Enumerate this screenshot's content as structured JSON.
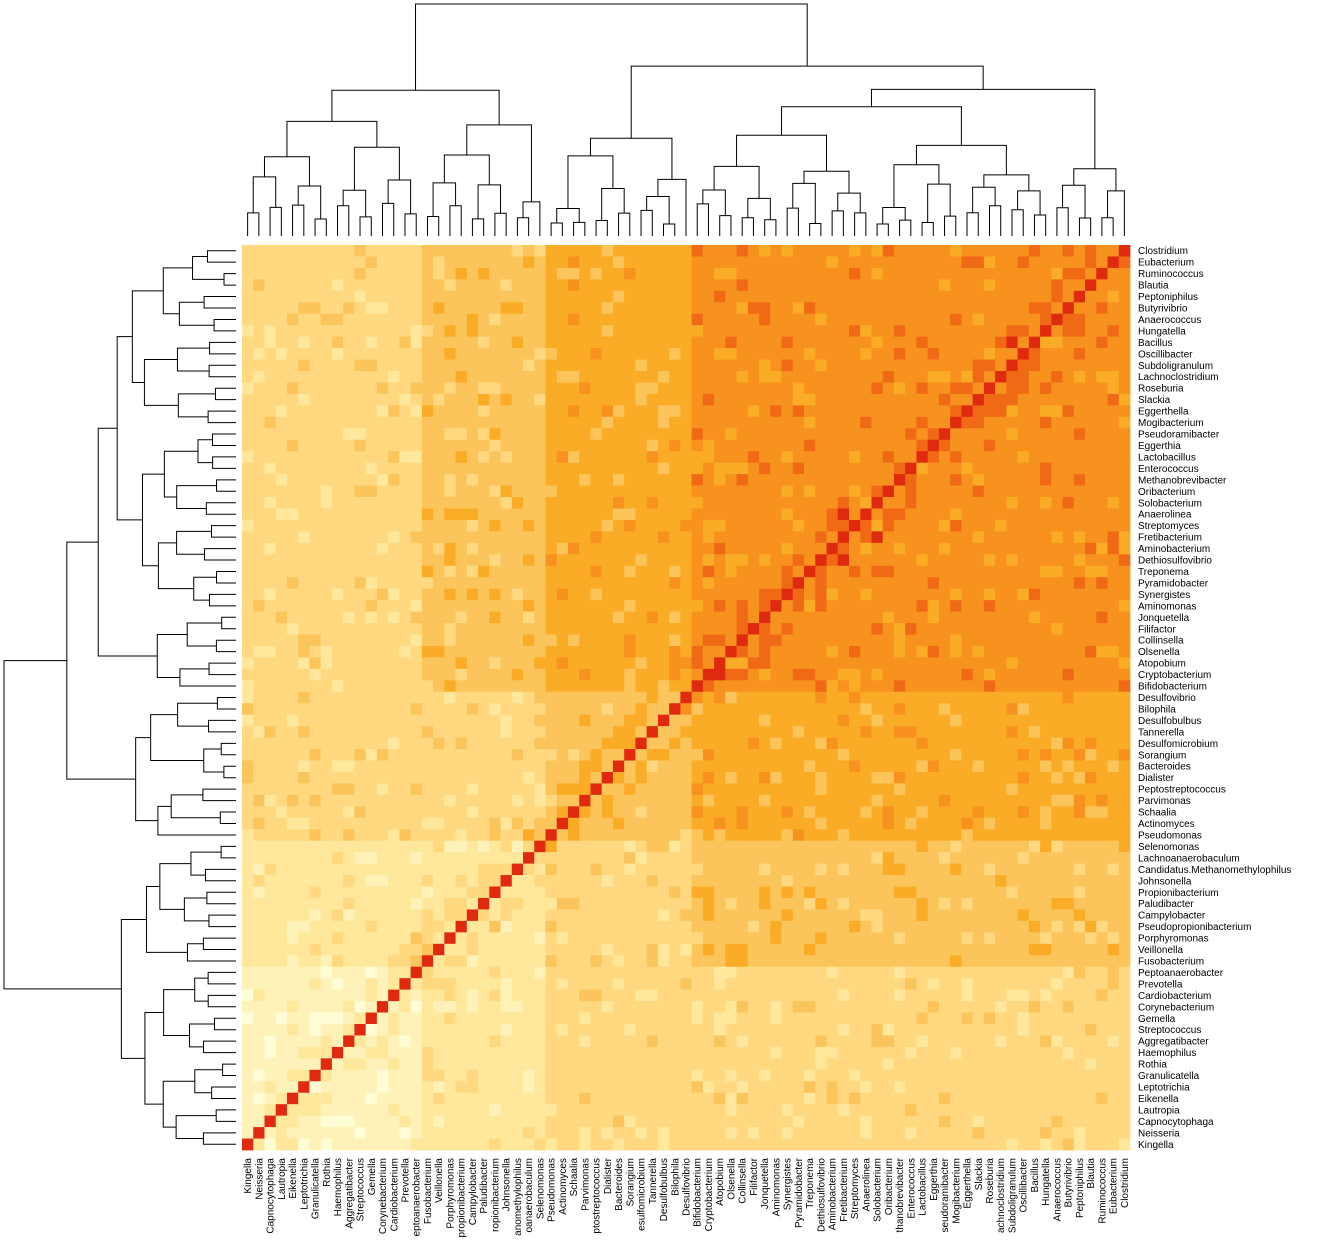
{
  "chart_data": {
    "type": "heatmap",
    "clustered": true,
    "row_labels": [
      "Clostridium",
      "Eubacterium",
      "Ruminococcus",
      "Blautia",
      "Peptoniphilus",
      "Butyrivibrio",
      "Anaerococcus",
      "Hungatella",
      "Bacillus",
      "Oscillibacter",
      "Subdoligranulum",
      "Lachnoclostridium",
      "Roseburia",
      "Slackia",
      "Eggerthella",
      "Mogibacterium",
      "Pseudoramibacter",
      "Eggerthia",
      "Lactobacillus",
      "Enterococcus",
      "Methanobrevibacter",
      "Oribacterium",
      "Solobacterium",
      "Anaerolinea",
      "Streptomyces",
      "Fretibacterium",
      "Aminobacterium",
      "Dethiosulfovibrio",
      "Treponema",
      "Pyramidobacter",
      "Synergistes",
      "Aminomonas",
      "Jonquetella",
      "Filifactor",
      "Collinsella",
      "Olsenella",
      "Atopobium",
      "Cryptobacterium",
      "Bifidobacterium",
      "Desulfovibrio",
      "Bilophila",
      "Desulfobulbus",
      "Tannerella",
      "Desulfomicrobium",
      "Sorangium",
      "Bacteroides",
      "Dialister",
      "Peptostreptococcus",
      "Parvimonas",
      "Schaalia",
      "Actinomyces",
      "Pseudomonas",
      "Selenomonas",
      "Lachnoanaerobaculum",
      "Candidatus.Methanomethylophilus",
      "Johnsonella",
      "Propionibacterium",
      "Paludibacter",
      "Campylobacter",
      "Pseudopropionibacterium",
      "Porphyromonas",
      "Veillonella",
      "Fusobacterium",
      "Peptoanaerobacter",
      "Prevotella",
      "Cardiobacterium",
      "Corynebacterium",
      "Gemella",
      "Streptococcus",
      "Aggregatibacter",
      "Haemophilus",
      "Rothia",
      "Granulicatella",
      "Leptotrichia",
      "Eikenella",
      "Lautropia",
      "Capnocytophaga",
      "Neisseria",
      "Kingella"
    ],
    "col_labels": [
      "Kingella",
      "Neisseria",
      "Capnocytophaga",
      "Lautropia",
      "Eikenella",
      "Leptotrichia",
      "Granulicatella",
      "Rothia",
      "Haemophilus",
      "Aggregatibacter",
      "Streptococcus",
      "Gemella",
      "Corynebacterium",
      "Cardiobacterium",
      "Prevotella",
      "Peptoanaerobacter",
      "Fusobacterium",
      "Veillonella",
      "Porphyromonas",
      "Pseudopropionibacterium",
      "Campylobacter",
      "Paludibacter",
      "Propionibacterium",
      "Johnsonella",
      "Candidatus.Methanomethylophilus",
      "Lachnoanaerobaculum",
      "Selenomonas",
      "Pseudomonas",
      "Actinomyces",
      "Schaalia",
      "Parvimonas",
      "Peptostreptococcus",
      "Dialister",
      "Bacteroides",
      "Sorangium",
      "Desulfomicrobium",
      "Tannerella",
      "Desulfobulbus",
      "Bilophila",
      "Desulfovibrio",
      "Bifidobacterium",
      "Cryptobacterium",
      "Atopobium",
      "Olsenella",
      "Collinsella",
      "Filifactor",
      "Jonquetella",
      "Aminomonas",
      "Synergistes",
      "Pyramidobacter",
      "Treponema",
      "Dethiosulfovibrio",
      "Aminobacterium",
      "Fretibacterium",
      "Streptomyces",
      "Anaerolinea",
      "Solobacterium",
      "Oribacterium",
      "Methanobrevibacter",
      "Enterococcus",
      "Lactobacillus",
      "Eggerthia",
      "Pseudoramibacter",
      "Mogibacterium",
      "Eggerthella",
      "Slackia",
      "Roseburia",
      "Lachnoclostridium",
      "Subdoligranulum",
      "Oscillibacter",
      "Bacillus",
      "Hungatella",
      "Anaerococcus",
      "Butyrivibrio",
      "Peptoniphilus",
      "Blautia",
      "Ruminococcus",
      "Eubacterium",
      "Clostridium"
    ],
    "col_label_display": [
      "Kingella",
      "Neisseria",
      "Capnocytophaga",
      "Lautropia",
      "Eikenella",
      "Leptotrichia",
      "Granulicatella",
      "Rothia",
      "Haemophilus",
      "Aggregatibacter",
      "Streptococcus",
      "Gemella",
      "Corynebacterium",
      "Cardiobacterium",
      "Prevotella",
      "eptoanaerobacter",
      "Fusobacterium",
      "Veillonella",
      "Porphyromonas",
      "propionibacterium",
      "Campylobacter",
      "Paludibacter",
      "ropionibacterium",
      "Johnsonella",
      "anomethylophilus",
      "oanaerobaculum",
      "Selenomonas",
      "Pseudomonas",
      "Actinomyces",
      "Schaalia",
      "Parvimonas",
      "ptostreptococcus",
      "Dialister",
      "Bacteroides",
      "Sorangium",
      "esulfomicrobium",
      "Tannerella",
      "Desulfobulbus",
      "Bilophila",
      "Desulfovibrio",
      "Bifidobacterium",
      "Cryptobacterium",
      "Atopobium",
      "Olsenella",
      "Collinsella",
      "Filifactor",
      "Jonquetella",
      "Aminomonas",
      "Synergistes",
      "Pyramidobacter",
      "Treponema",
      "Dethiosulfovibrio",
      "Aminobacterium",
      "Fretibacterium",
      "Streptomyces",
      "Anaerolinea",
      "Solobacterium",
      "Oribacterium",
      "thanobrevibacter",
      "Enterococcus",
      "Lactobacillus",
      "Eggerthia",
      "seudoramibacter",
      "Mogibacterium",
      "Eggerthella",
      "Slackia",
      "Roseburia",
      "achnoclostridium",
      "Subdoligranulum",
      "Oscillibacter",
      "Bacillus",
      "Hungatella",
      "Anaerococcus",
      "Butyrivibrio",
      "Peptoniphilus",
      "Blautia",
      "Ruminococcus",
      "Eubacterium",
      "Clostridium"
    ],
    "col_groups": [
      {
        "level": 1,
        "members": [
          "Kingella",
          "Neisseria",
          "Capnocytophaga",
          "Lautropia",
          "Eikenella",
          "Leptotrichia",
          "Granulicatella",
          "Rothia",
          "Haemophilus",
          "Aggregatibacter",
          "Streptococcus",
          "Gemella",
          "Corynebacterium",
          "Cardiobacterium",
          "Prevotella",
          "Peptoanaerobacter"
        ]
      },
      {
        "level": 2,
        "members": [
          "Fusobacterium",
          "Veillonella",
          "Porphyromonas",
          "Pseudopropionibacterium",
          "Campylobacter",
          "Paludibacter",
          "Propionibacterium",
          "Johnsonella",
          "Candidatus.Methanomethylophilus",
          "Lachnoanaerobaculum",
          "Selenomonas"
        ]
      },
      {
        "level": 3,
        "members": [
          "Pseudomonas",
          "Actinomyces",
          "Schaalia",
          "Parvimonas",
          "Peptostreptococcus",
          "Dialister",
          "Bacteroides",
          "Sorangium",
          "Desulfomicrobium",
          "Tannerella",
          "Desulfobulbus",
          "Bilophila",
          "Desulfovibrio"
        ]
      },
      {
        "level": 4,
        "members": [
          "Bifidobacterium",
          "Cryptobacterium",
          "Atopobium",
          "Olsenella",
          "Collinsella",
          "Filifactor",
          "Jonquetella",
          "Aminomonas",
          "Synergistes",
          "Pyramidobacter",
          "Treponema",
          "Dethiosulfovibrio",
          "Aminobacterium",
          "Fretibacterium",
          "Streptomyces",
          "Anaerolinea",
          "Solobacterium",
          "Oribacterium",
          "Methanobrevibacter",
          "Enterococcus",
          "Lactobacillus",
          "Eggerthia",
          "Pseudoramibacter",
          "Mogibacterium",
          "Eggerthella",
          "Slackia",
          "Roseburia",
          "Lachnoclostridium",
          "Subdoligranulum",
          "Oscillibacter",
          "Bacillus",
          "Hungatella",
          "Anaerococcus",
          "Butyrivibrio",
          "Peptoniphilus",
          "Blautia",
          "Ruminococcus",
          "Eubacterium",
          "Clostridium"
        ]
      }
    ],
    "block_values": [
      [
        1,
        2,
        3,
        3
      ],
      [
        2,
        2,
        3,
        4
      ],
      [
        3,
        3,
        4,
        5
      ],
      [
        3,
        4,
        5,
        6
      ]
    ],
    "diagonal_value": 8,
    "color_scale": [
      "#fffdd6",
      "#fff2b8",
      "#ffe79c",
      "#ffd880",
      "#fcc55c",
      "#fbac26",
      "#f7921e",
      "#f06a16",
      "#e02a10",
      "#a80d0a",
      "#7a0000"
    ],
    "dendrograms": {
      "top": true,
      "left": true
    },
    "legend": "none",
    "title": "",
    "xlabel": "",
    "ylabel": ""
  }
}
